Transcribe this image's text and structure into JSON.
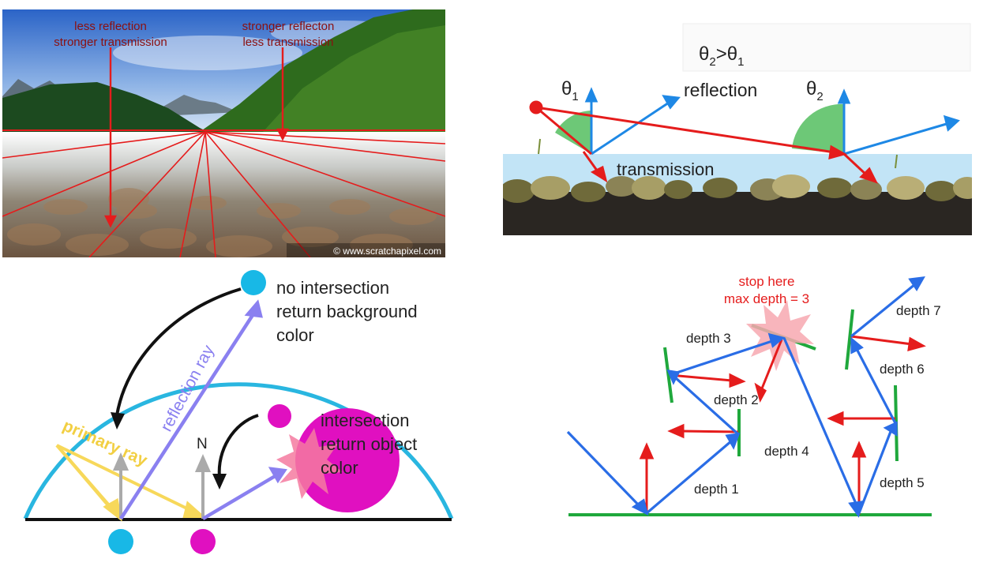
{
  "panel1": {
    "label_left_1": "less reflection",
    "label_left_2": "stronger transmission",
    "label_right_1": "stronger reflecton",
    "label_right_2": "less transmission",
    "copyright": "© www.scratchapixel.com",
    "colors": {
      "label": "#8b1010",
      "lines": "#e51c1c"
    }
  },
  "panel2": {
    "theta_relation": {
      "base": "θ",
      "sub2": "2",
      "op": ">",
      "sub1": "1"
    },
    "theta1": {
      "base": "θ",
      "sub": "1"
    },
    "theta2": {
      "base": "θ",
      "sub": "2"
    },
    "reflection_label": "reflection",
    "transmission_label": "transmission",
    "colors": {
      "incident": "#e51c1c",
      "reflected": "#1e88e5",
      "normal": "#1e88e5",
      "angle": "#3cb54a",
      "water": "#c2e4f6",
      "ground": "#2a2622"
    }
  },
  "panel3": {
    "no_intersection": [
      "no intersection",
      "return background",
      "color"
    ],
    "reflection_ray": "reflection ray",
    "primary_ray": "primary ray",
    "normal_label": "N",
    "intersection": [
      "intersection",
      "return object",
      "color"
    ],
    "colors": {
      "dome": "#29b6e0",
      "dot_cyan": "#18b8e6",
      "dot_magenta": "#e010c0",
      "primary": "#f7d85a",
      "reflection": "#8a80f0",
      "normal": "#aaaaaa"
    }
  },
  "panel4": {
    "stop_here": "stop here",
    "max_depth": "max depth = 3",
    "depths": [
      "depth 1",
      "depth 2",
      "depth 3",
      "depth 4",
      "depth 5",
      "depth 6",
      "depth 7"
    ],
    "colors": {
      "ray": "#2a6de6",
      "normal": "#e51c1c",
      "surface": "#1fa83c",
      "stop": "#e51c1c"
    }
  }
}
